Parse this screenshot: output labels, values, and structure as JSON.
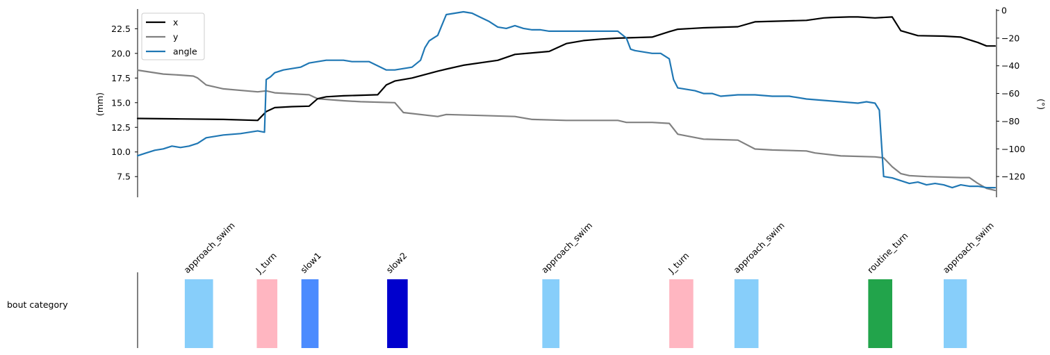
{
  "chart_data": [
    {
      "type": "line",
      "ylabel_left": "(mm)",
      "ylabel_right": "(°)",
      "ylim_left": [
        5.4,
        24.5
      ],
      "ylim_right": [
        -135,
        1
      ],
      "yticks_left": [
        "7.5",
        "10.0",
        "12.5",
        "15.0",
        "17.5",
        "20.0",
        "22.5"
      ],
      "yticks_right": [
        "0",
        "−20",
        "−40",
        "−60",
        "−80",
        "−100",
        "−120"
      ],
      "xlim": [
        0,
        100
      ],
      "legend_position": "top-left",
      "series": [
        {
          "name": "x",
          "axis": "left",
          "color": "#000000",
          "x": [
            0,
            5,
            10,
            14,
            15,
            16,
            18,
            20,
            21,
            22,
            24,
            28,
            29,
            30,
            32,
            35,
            36,
            38,
            42,
            44,
            48,
            50,
            52,
            54,
            56,
            58,
            60,
            62,
            63,
            65,
            66,
            70,
            72,
            76,
            78,
            80,
            81,
            83,
            84,
            86,
            88,
            89,
            91,
            94,
            96,
            98,
            99,
            100
          ],
          "values": [
            13.4,
            13.35,
            13.3,
            13.2,
            14.1,
            14.5,
            14.6,
            14.65,
            15.4,
            15.6,
            15.7,
            15.8,
            16.8,
            17.2,
            17.5,
            18.2,
            18.4,
            18.8,
            19.3,
            19.9,
            20.2,
            21.0,
            21.3,
            21.45,
            21.55,
            21.6,
            21.65,
            22.2,
            22.45,
            22.55,
            22.6,
            22.7,
            23.2,
            23.3,
            23.35,
            23.6,
            23.65,
            23.7,
            23.7,
            23.6,
            23.7,
            22.3,
            21.8,
            21.75,
            21.65,
            21.1,
            20.75,
            20.75
          ]
        },
        {
          "name": "y",
          "axis": "left",
          "color": "#808080",
          "x": [
            0,
            3,
            5,
            6.5,
            7,
            8,
            10,
            14,
            15,
            16,
            18,
            20,
            21,
            24,
            26,
            30,
            31,
            35,
            36,
            40,
            44,
            46,
            50,
            56,
            57,
            60,
            62,
            63,
            66,
            70,
            72,
            74,
            78,
            79,
            82,
            86,
            87,
            88,
            89,
            90,
            92,
            96,
            97,
            98,
            99,
            100
          ],
          "values": [
            18.3,
            17.9,
            17.8,
            17.7,
            17.5,
            16.8,
            16.4,
            16.1,
            16.2,
            16.0,
            15.9,
            15.8,
            15.4,
            15.2,
            15.1,
            15.0,
            14.0,
            13.6,
            13.8,
            13.7,
            13.6,
            13.3,
            13.2,
            13.2,
            13.0,
            13.0,
            12.9,
            11.8,
            11.3,
            11.2,
            10.3,
            10.2,
            10.1,
            9.9,
            9.6,
            9.5,
            9.4,
            8.5,
            7.8,
            7.6,
            7.5,
            7.4,
            7.4,
            6.8,
            6.3,
            6.1
          ]
        },
        {
          "name": "angle",
          "axis": "right",
          "color": "#1f77b4",
          "x": [
            0,
            1,
            2,
            3,
            4,
            5,
            6,
            7,
            8,
            9,
            10,
            12,
            14,
            14.8,
            15,
            15.5,
            16,
            17,
            18,
            19,
            20,
            21,
            22,
            24,
            25,
            27,
            29,
            30,
            32,
            33,
            33.5,
            34,
            34.5,
            35,
            36,
            37,
            38,
            39,
            40,
            41,
            42,
            43,
            44,
            45,
            46,
            47,
            48,
            50,
            52,
            54,
            56,
            57,
            57.5,
            58,
            59,
            60,
            61,
            62,
            62.5,
            63,
            64,
            65,
            66,
            67,
            68,
            70,
            72,
            74,
            76,
            78,
            80,
            82,
            84,
            85,
            86,
            86.5,
            87,
            88,
            89,
            90,
            91,
            92,
            93,
            94,
            95,
            96,
            97,
            98,
            99,
            100
          ],
          "values": [
            -105,
            -103,
            -101,
            -100,
            -98,
            -99,
            -98,
            -96,
            -92,
            -91,
            -90,
            -89,
            -87,
            -88,
            -50,
            -48,
            -45,
            -43,
            -42,
            -41,
            -38,
            -37,
            -36,
            -36,
            -37,
            -37,
            -43,
            -43,
            -41,
            -36,
            -27,
            -22,
            -20,
            -18,
            -3,
            -2,
            -1,
            -2,
            -5,
            -8,
            -12,
            -13,
            -11,
            -13,
            -14,
            -14,
            -15,
            -15,
            -15,
            -15,
            -15,
            -20,
            -28,
            -29,
            -30,
            -31,
            -31,
            -35,
            -50,
            -56,
            -57,
            -58,
            -60,
            -60,
            -62,
            -61,
            -61,
            -62,
            -62,
            -64,
            -65,
            -66,
            -67,
            -66,
            -67,
            -72,
            -120,
            -121,
            -123,
            -125,
            -124,
            -126,
            -125,
            -126,
            -128,
            -126,
            -127,
            -127,
            -128,
            -128
          ]
        }
      ]
    },
    {
      "type": "bar",
      "ylabel": "bout category",
      "xlim": [
        0,
        100
      ],
      "bouts": [
        {
          "label": "approach_swim",
          "start": 5.5,
          "end": 8.8,
          "color": "#87cefa"
        },
        {
          "label": "J_turn",
          "start": 13.9,
          "end": 16.3,
          "color": "#ffb6c1"
        },
        {
          "label": "slow1",
          "start": 19.1,
          "end": 21.1,
          "color": "#4b8bfe"
        },
        {
          "label": "slow2",
          "start": 29.1,
          "end": 31.5,
          "color": "#0000cd"
        },
        {
          "label": "approach_swim",
          "start": 47.2,
          "end": 49.2,
          "color": "#87cefa"
        },
        {
          "label": "J_turn",
          "start": 62.0,
          "end": 64.8,
          "color": "#ffb6c1"
        },
        {
          "label": "approach_swim",
          "start": 69.6,
          "end": 72.4,
          "color": "#87cefa"
        },
        {
          "label": "routine_turn",
          "start": 85.2,
          "end": 88.0,
          "color": "#22a44b"
        },
        {
          "label": "approach_swim",
          "start": 94.0,
          "end": 96.7,
          "color": "#87cefa"
        }
      ]
    }
  ]
}
